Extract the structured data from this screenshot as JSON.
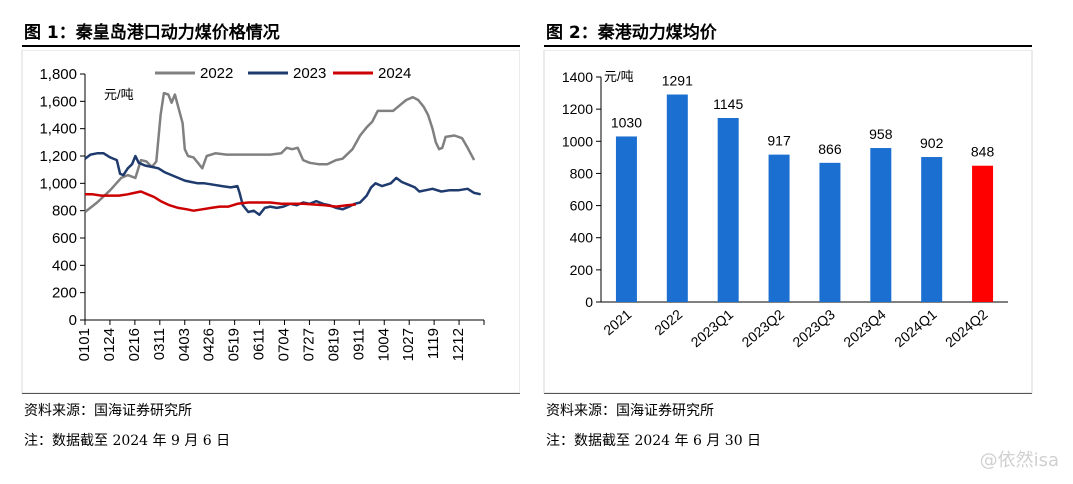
{
  "fig1": {
    "title": "图 1：秦皇岛港口动力煤价格情况",
    "source": "资料来源：国海证券研究所",
    "note": "注：数据截至 2024 年 9 月 6 日"
  },
  "fig2": {
    "title": "图 2：秦港动力煤均价",
    "source": "资料来源：国海证券研究所",
    "note": "注：数据截至 2024 年 6 月 30 日"
  },
  "watermark": "@依然isa",
  "chart_data": [
    {
      "type": "line",
      "unit": "元/吨",
      "ylim": [
        0,
        1800
      ],
      "yticks": [
        0,
        200,
        400,
        600,
        800,
        1000,
        1200,
        1400,
        1600,
        1800
      ],
      "ytick_labels": [
        "0",
        "200",
        "400",
        "600",
        "800",
        "1,000",
        "1,200",
        "1,400",
        "1,600",
        "1,800"
      ],
      "xticks": [
        "0101",
        "0124",
        "0216",
        "0311",
        "0403",
        "0426",
        "0519",
        "0611",
        "0704",
        "0727",
        "0819",
        "0911",
        "1004",
        "1027",
        "1119",
        "1212"
      ],
      "x_axis": "day of year",
      "xlim": [
        1,
        365
      ],
      "legend_position": "top",
      "series": [
        {
          "name": "2022",
          "color": "#808080",
          "points": [
            [
              1,
              790
            ],
            [
              12,
              860
            ],
            [
              24,
              950
            ],
            [
              34,
              1040
            ],
            [
              40,
              1060
            ],
            [
              47,
              1040
            ],
            [
              52,
              1170
            ],
            [
              57,
              1160
            ],
            [
              62,
              1120
            ],
            [
              66,
              1160
            ],
            [
              70,
              1500
            ],
            [
              73,
              1660
            ],
            [
              77,
              1650
            ],
            [
              80,
              1590
            ],
            [
              83,
              1650
            ],
            [
              86,
              1560
            ],
            [
              90,
              1440
            ],
            [
              92,
              1250
            ],
            [
              95,
              1200
            ],
            [
              100,
              1190
            ],
            [
              104,
              1150
            ],
            [
              108,
              1110
            ],
            [
              112,
              1200
            ],
            [
              120,
              1220
            ],
            [
              130,
              1210
            ],
            [
              150,
              1210
            ],
            [
              170,
              1210
            ],
            [
              180,
              1220
            ],
            [
              185,
              1260
            ],
            [
              190,
              1250
            ],
            [
              195,
              1260
            ],
            [
              200,
              1170
            ],
            [
              206,
              1150
            ],
            [
              214,
              1140
            ],
            [
              222,
              1140
            ],
            [
              230,
              1170
            ],
            [
              236,
              1180
            ],
            [
              245,
              1250
            ],
            [
              252,
              1350
            ],
            [
              258,
              1410
            ],
            [
              263,
              1450
            ],
            [
              268,
              1530
            ],
            [
              275,
              1530
            ],
            [
              282,
              1530
            ],
            [
              288,
              1570
            ],
            [
              294,
              1610
            ],
            [
              300,
              1630
            ],
            [
              305,
              1610
            ],
            [
              310,
              1560
            ],
            [
              314,
              1500
            ],
            [
              318,
              1400
            ],
            [
              321,
              1300
            ],
            [
              324,
              1250
            ],
            [
              327,
              1260
            ],
            [
              330,
              1340
            ],
            [
              338,
              1350
            ],
            [
              345,
              1330
            ],
            [
              350,
              1260
            ],
            [
              356,
              1170
            ]
          ]
        },
        {
          "name": "2023",
          "color": "#1f3b6e",
          "points": [
            [
              1,
              1180
            ],
            [
              6,
              1210
            ],
            [
              12,
              1220
            ],
            [
              18,
              1220
            ],
            [
              24,
              1190
            ],
            [
              30,
              1170
            ],
            [
              33,
              1070
            ],
            [
              36,
              1060
            ],
            [
              40,
              1110
            ],
            [
              44,
              1140
            ],
            [
              47,
              1200
            ],
            [
              50,
              1150
            ],
            [
              56,
              1130
            ],
            [
              62,
              1120
            ],
            [
              68,
              1110
            ],
            [
              74,
              1080
            ],
            [
              80,
              1060
            ],
            [
              86,
              1040
            ],
            [
              92,
              1020
            ],
            [
              98,
              1010
            ],
            [
              104,
              1000
            ],
            [
              110,
              1000
            ],
            [
              118,
              990
            ],
            [
              126,
              980
            ],
            [
              134,
              970
            ],
            [
              140,
              980
            ],
            [
              142,
              930
            ],
            [
              145,
              840
            ],
            [
              150,
              790
            ],
            [
              155,
              800
            ],
            [
              160,
              770
            ],
            [
              165,
              820
            ],
            [
              170,
              830
            ],
            [
              176,
              820
            ],
            [
              182,
              830
            ],
            [
              188,
              850
            ],
            [
              194,
              840
            ],
            [
              200,
              860
            ],
            [
              206,
              850
            ],
            [
              212,
              870
            ],
            [
              218,
              850
            ],
            [
              224,
              840
            ],
            [
              230,
              820
            ],
            [
              236,
              810
            ],
            [
              242,
              830
            ],
            [
              247,
              850
            ],
            [
              252,
              860
            ],
            [
              258,
              910
            ],
            [
              262,
              970
            ],
            [
              266,
              1000
            ],
            [
              272,
              980
            ],
            [
              280,
              1000
            ],
            [
              285,
              1040
            ],
            [
              290,
              1010
            ],
            [
              296,
              990
            ],
            [
              302,
              970
            ],
            [
              306,
              940
            ],
            [
              312,
              950
            ],
            [
              318,
              960
            ],
            [
              326,
              940
            ],
            [
              334,
              950
            ],
            [
              342,
              950
            ],
            [
              350,
              960
            ],
            [
              356,
              930
            ],
            [
              362,
              920
            ]
          ]
        },
        {
          "name": "2024",
          "color": "#cc0000",
          "points": [
            [
              1,
              920
            ],
            [
              8,
              920
            ],
            [
              16,
              910
            ],
            [
              24,
              910
            ],
            [
              32,
              910
            ],
            [
              40,
              920
            ],
            [
              46,
              930
            ],
            [
              52,
              940
            ],
            [
              58,
              920
            ],
            [
              64,
              900
            ],
            [
              70,
              870
            ],
            [
              78,
              840
            ],
            [
              86,
              820
            ],
            [
              94,
              810
            ],
            [
              100,
              800
            ],
            [
              108,
              810
            ],
            [
              116,
              820
            ],
            [
              124,
              830
            ],
            [
              132,
              830
            ],
            [
              140,
              850
            ],
            [
              150,
              860
            ],
            [
              160,
              860
            ],
            [
              170,
              860
            ],
            [
              180,
              850
            ],
            [
              190,
              850
            ],
            [
              200,
              850
            ],
            [
              210,
              845
            ],
            [
              220,
              840
            ],
            [
              230,
              830
            ],
            [
              240,
              840
            ],
            [
              248,
              845
            ]
          ]
        }
      ]
    },
    {
      "type": "bar",
      "unit": "元/吨",
      "categories": [
        "2021",
        "2022",
        "2023Q1",
        "2023Q2",
        "2023Q3",
        "2023Q4",
        "2024Q1",
        "2024Q2"
      ],
      "values": [
        1030,
        1291,
        1145,
        917,
        866,
        958,
        902,
        848
      ],
      "colors": [
        "#1a6fd1",
        "#1a6fd1",
        "#1a6fd1",
        "#1a6fd1",
        "#1a6fd1",
        "#1a6fd1",
        "#1a6fd1",
        "#ff0000"
      ],
      "ylim": [
        0,
        1400
      ],
      "yticks": [
        0,
        200,
        400,
        600,
        800,
        1000,
        1200,
        1400
      ]
    }
  ]
}
